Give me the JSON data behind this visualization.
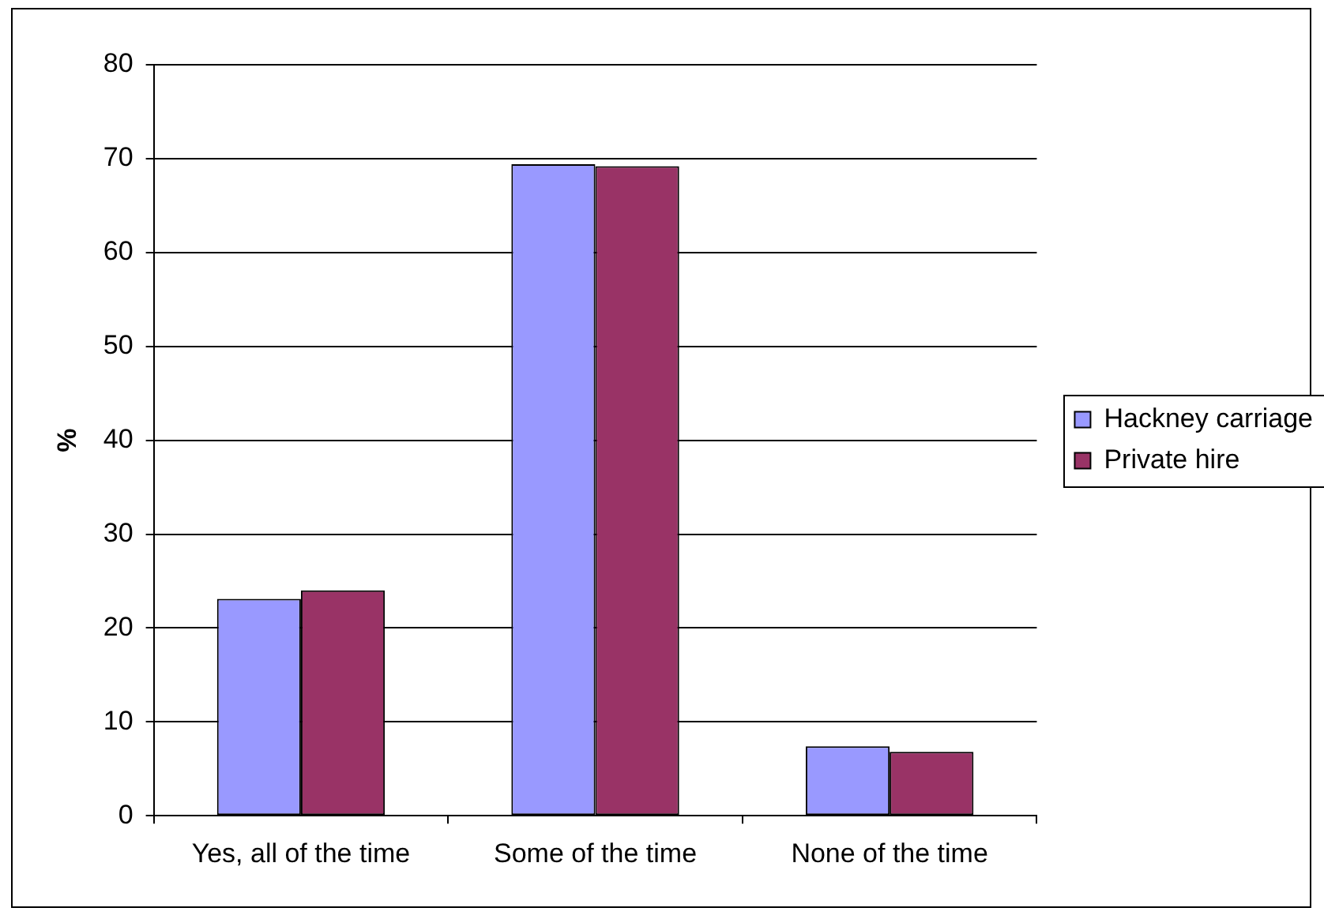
{
  "chart_data": {
    "type": "bar",
    "ylabel": "%",
    "categories": [
      "Yes, all of the time",
      "Some of the time",
      "None of the time"
    ],
    "series": [
      {
        "name": "Hackney carriage",
        "color": "#9999ff",
        "values": [
          23.1,
          69.4,
          7.4
        ]
      },
      {
        "name": "Private hire",
        "color": "#993366",
        "values": [
          24.0,
          69.2,
          6.8
        ]
      }
    ],
    "ylim": [
      0,
      80
    ],
    "yticks": [
      0,
      10,
      20,
      30,
      40,
      50,
      60,
      70,
      80
    ],
    "grid": "y",
    "legend": "right"
  }
}
